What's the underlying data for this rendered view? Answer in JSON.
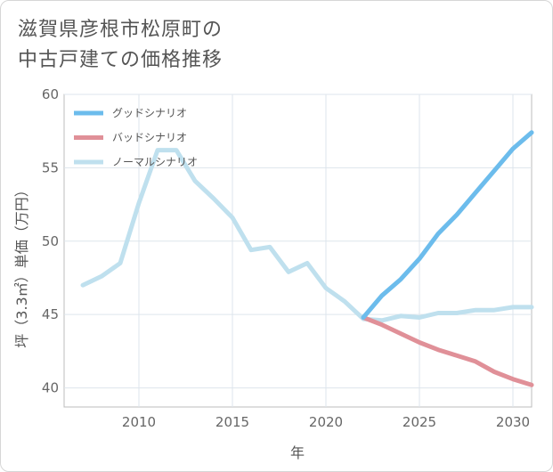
{
  "title": {
    "line1": "滋賀県彦根市松原町の",
    "line2": "中古戸建ての価格推移"
  },
  "chart_data": {
    "type": "line",
    "xlabel": "年",
    "ylabel": "坪（3.3㎡）単価（万円）",
    "xlim": [
      2006,
      2031
    ],
    "ylim": [
      38.7,
      60
    ],
    "xticks": [
      2010,
      2015,
      2020,
      2025,
      2030
    ],
    "yticks": [
      40,
      45,
      50,
      55,
      60
    ],
    "grid": true,
    "legend_position": "top-left",
    "series": [
      {
        "name": "グッドシナリオ",
        "color": "#6cbcec",
        "x": [
          2022,
          2023,
          2024,
          2025,
          2026,
          2027,
          2028,
          2029,
          2030,
          2031
        ],
        "y": [
          44.8,
          46.3,
          47.4,
          48.8,
          50.5,
          51.8,
          53.3,
          54.8,
          56.3,
          57.4
        ]
      },
      {
        "name": "バッドシナリオ",
        "color": "#e09098",
        "x": [
          2022,
          2023,
          2024,
          2025,
          2026,
          2027,
          2028,
          2029,
          2030,
          2031
        ],
        "y": [
          44.8,
          44.3,
          43.7,
          43.1,
          42.6,
          42.2,
          41.8,
          41.1,
          40.6,
          40.2
        ]
      },
      {
        "name": "ノーマルシナリオ",
        "color": "#bfe0ee",
        "x": [
          2007,
          2008,
          2009,
          2010,
          2011,
          2012,
          2013,
          2014,
          2015,
          2016,
          2017,
          2018,
          2019,
          2020,
          2021,
          2022,
          2023,
          2024,
          2025,
          2026,
          2027,
          2028,
          2029,
          2030,
          2031
        ],
        "y": [
          47.0,
          47.6,
          48.5,
          52.6,
          56.2,
          56.2,
          54.1,
          52.9,
          51.6,
          49.4,
          49.6,
          47.9,
          48.5,
          46.8,
          45.9,
          44.7,
          44.6,
          44.9,
          44.8,
          45.1,
          45.1,
          45.3,
          45.3,
          45.5,
          45.5
        ]
      }
    ]
  }
}
